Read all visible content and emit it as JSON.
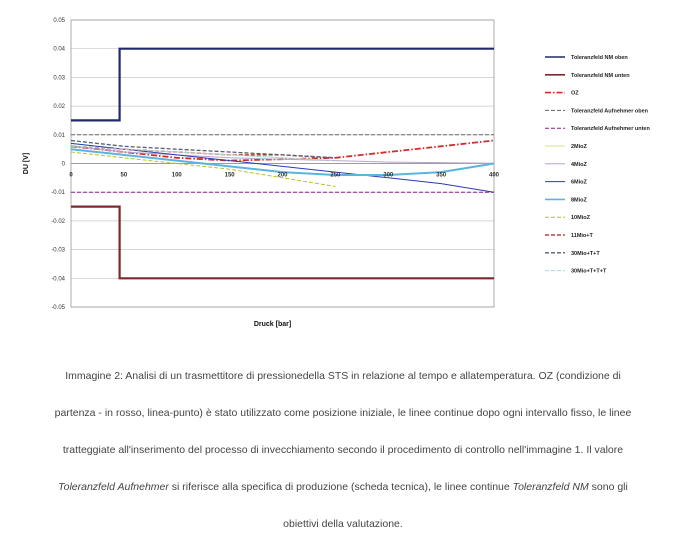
{
  "chart_data": {
    "type": "line",
    "xlabel": "Druck [bar]",
    "ylabel": "DU [V]",
    "xlim": [
      0,
      400
    ],
    "ylim": [
      -0.05,
      0.05
    ],
    "x_ticks": [
      0,
      50,
      100,
      150,
      200,
      250,
      300,
      350,
      400
    ],
    "y_ticks": [
      -0.05,
      -0.04,
      -0.03,
      -0.02,
      -0.01,
      0,
      0.01,
      0.02,
      0.03,
      0.04,
      0.05
    ],
    "x_tick_labels": [
      "0",
      "50",
      "100",
      "150",
      "200",
      "250",
      "300",
      "350",
      "400"
    ],
    "y_tick_labels": [
      "-0.05",
      "-0.04",
      "-0.03",
      "-0.02",
      "-0.01",
      "0",
      "0.01",
      "0.02",
      "0.03",
      "0.04",
      "0.05"
    ],
    "grid": "horizontal",
    "legend_position": "right",
    "series": [
      {
        "name": "Toleranzfeld NM oben",
        "color": "#1f2a6b",
        "dash": "solid",
        "width": 2.2,
        "x": [
          0,
          46,
          46,
          400
        ],
        "y": [
          0.015,
          0.015,
          0.04,
          0.04
        ]
      },
      {
        "name": "Toleranzfeld NM unten",
        "color": "#7a2a2a",
        "dash": "solid",
        "width": 2.2,
        "x": [
          0,
          46,
          46,
          400
        ],
        "y": [
          -0.015,
          -0.015,
          -0.04,
          -0.04
        ]
      },
      {
        "name": "OZ",
        "color": "#d62a2a",
        "dash": "dashdot",
        "width": 1.8,
        "x": [
          0,
          50,
          100,
          150,
          200,
          250,
          300,
          350,
          400
        ],
        "y": [
          0.006,
          0.004,
          0.002,
          0.001,
          0.0015,
          0.002,
          0.004,
          0.006,
          0.008
        ]
      },
      {
        "name": "Toleranzfeld Aufnehmer oben",
        "color": "#666666",
        "dash": "dashed",
        "width": 1,
        "x": [
          0,
          400
        ],
        "y": [
          0.01,
          0.01
        ]
      },
      {
        "name": "Toleranzfeld Aufnehmer unten",
        "color": "#8a1f8a",
        "dash": "dashed",
        "width": 1,
        "x": [
          0,
          400
        ],
        "y": [
          -0.01,
          -0.01
        ]
      },
      {
        "name": "2MioZ",
        "color": "#d8e08c",
        "dash": "solid",
        "width": 1,
        "x": [
          0,
          50,
          100,
          150,
          200,
          250
        ],
        "y": [
          0.007,
          0.005,
          0.004,
          0.003,
          0.002,
          0.001
        ]
      },
      {
        "name": "4MioZ",
        "color": "#b7a6cc",
        "dash": "solid",
        "width": 1,
        "x": [
          0,
          50,
          100,
          150,
          200,
          250,
          300,
          350,
          400
        ],
        "y": [
          0.006,
          0.004,
          0.003,
          0.002,
          0.0015,
          0.001,
          0.0005,
          0.0003,
          0.0001
        ]
      },
      {
        "name": "6MioZ",
        "color": "#2a3bb5",
        "dash": "solid",
        "width": 1,
        "x": [
          0,
          50,
          100,
          150,
          200,
          250,
          300,
          350,
          400
        ],
        "y": [
          0.007,
          0.005,
          0.003,
          0.001,
          -0.001,
          -0.003,
          -0.005,
          -0.007,
          -0.01
        ]
      },
      {
        "name": "8MioZ",
        "color": "#5ab4e0",
        "dash": "solid",
        "width": 2,
        "x": [
          0,
          50,
          100,
          150,
          200,
          250,
          300,
          350,
          400
        ],
        "y": [
          0.005,
          0.003,
          0.001,
          -0.001,
          -0.003,
          -0.004,
          -0.004,
          -0.003,
          0.0
        ]
      },
      {
        "name": "10MioZ",
        "color": "#b5c22a",
        "dash": "dashed",
        "width": 1,
        "x": [
          0,
          50,
          100,
          150,
          200,
          250
        ],
        "y": [
          0.004,
          0.002,
          0.0,
          -0.002,
          -0.005,
          -0.008
        ]
      },
      {
        "name": "11Mio+T",
        "color": "#b01c1c",
        "dash": "dashed",
        "width": 1.3,
        "x": [
          0,
          50,
          100,
          150,
          200,
          250
        ],
        "y": [
          0.006,
          0.005,
          0.004,
          0.003,
          0.003,
          0.002
        ]
      },
      {
        "name": "30Mio+T+T",
        "color": "#556070",
        "dash": "dashed",
        "width": 1.3,
        "x": [
          0,
          50,
          100,
          150,
          200,
          250
        ],
        "y": [
          0.008,
          0.006,
          0.005,
          0.004,
          0.003,
          0.002
        ]
      },
      {
        "name": "30Mio+T+T+T",
        "color": "#a8d6ec",
        "dash": "dashed",
        "width": 1,
        "x": [
          0,
          50,
          100,
          150,
          200,
          250
        ],
        "y": [
          0.006,
          0.005,
          0.004,
          0.003,
          0.002,
          0.001
        ]
      }
    ]
  },
  "caption": {
    "line1": "Immagine 2: Analisi di un trasmettitore di pressionedella STS in relazione al tempo e allatemperatura. OZ (condizione di",
    "line2": "partenza - in rosso, linea-punto) è stato utilizzato come posizione iniziale, le linee continue dopo ogni intervallo fisso, le linee",
    "line3": "tratteggiate all'inserimento del processo di invecchiamento secondo il procedimento di controllo nell'immagine 1. Il valore",
    "line4_em1": "Toleranzfeld Aufnehmer",
    "line4_mid": " si riferisce alla specifica di produzione (scheda tecnica), le linee continue ",
    "line4_em2": "Toleranzfeld NM",
    "line4_end": " sono gli",
    "line5": "obiettivi della valutazione."
  }
}
